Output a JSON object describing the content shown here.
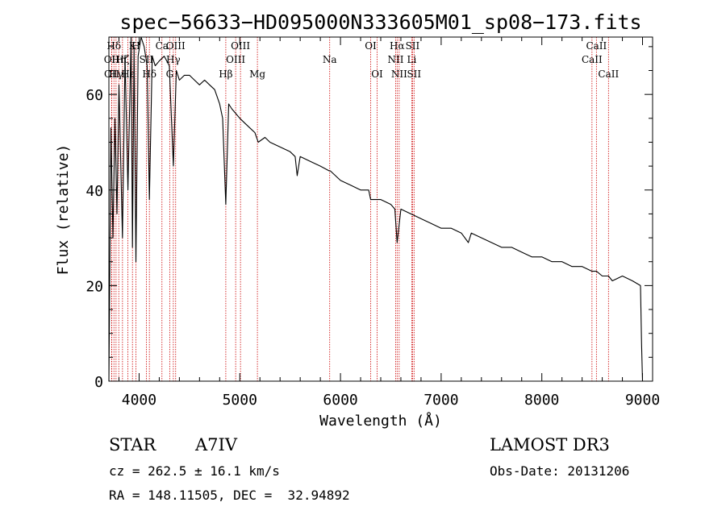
{
  "chart_data": {
    "type": "line",
    "title": "spec−56633−HD095000N333605M01_sp08−173.fits",
    "xlabel": "Wavelength (Å)",
    "ylabel": "Flux (relative)",
    "xlim": [
      3700,
      9100
    ],
    "ylim": [
      0,
      72
    ],
    "xticks": [
      4000,
      5000,
      6000,
      7000,
      8000,
      9000
    ],
    "yticks": [
      0,
      20,
      40,
      60
    ],
    "grid": false,
    "series": [
      {
        "name": "spectrum",
        "x": [
          3700,
          3720,
          3740,
          3760,
          3780,
          3800,
          3835,
          3860,
          3889,
          3920,
          3934,
          3950,
          3968,
          3990,
          4020,
          4050,
          4080,
          4102,
          4130,
          4160,
          4200,
          4250,
          4300,
          4340,
          4370,
          4400,
          4450,
          4500,
          4550,
          4600,
          4650,
          4700,
          4750,
          4800,
          4830,
          4861,
          4890,
          4920,
          4960,
          5000,
          5050,
          5100,
          5150,
          5183,
          5250,
          5300,
          5400,
          5500,
          5550,
          5570,
          5600,
          5700,
          5800,
          5890,
          5900,
          6000,
          6100,
          6200,
          6280,
          6300,
          6400,
          6500,
          6540,
          6563,
          6600,
          6700,
          6800,
          6900,
          7000,
          7100,
          7200,
          7270,
          7300,
          7400,
          7500,
          7600,
          7700,
          7800,
          7900,
          8000,
          8100,
          8200,
          8300,
          8400,
          8498,
          8542,
          8600,
          8662,
          8700,
          8800,
          8900,
          8980,
          8990,
          9000
        ],
        "y": [
          0,
          53,
          30,
          55,
          35,
          62,
          30,
          68,
          40,
          72,
          28,
          70,
          25,
          68,
          72,
          70,
          66,
          38,
          68,
          66,
          67,
          68,
          66,
          45,
          65,
          63,
          64,
          64,
          63,
          62,
          63,
          62,
          61,
          58,
          55,
          37,
          58,
          57,
          56,
          55,
          54,
          53,
          52,
          50,
          51,
          50,
          49,
          48,
          47,
          43,
          47,
          46,
          45,
          44,
          44,
          42,
          41,
          40,
          40,
          38,
          38,
          37,
          36,
          29,
          36,
          35,
          34,
          33,
          32,
          32,
          31,
          29,
          31,
          30,
          29,
          28,
          28,
          27,
          26,
          26,
          25,
          25,
          24,
          24,
          23,
          23,
          22,
          22,
          21,
          22,
          21,
          20,
          8,
          0
        ]
      }
    ],
    "lines": [
      {
        "label": "OII",
        "x": 3727,
        "row": 2
      },
      {
        "label": "OII",
        "x": 3729,
        "row": 3
      },
      {
        "label": "Hδ",
        "x": 3750,
        "row": 1
      },
      {
        "label": "Hγ",
        "x": 3771,
        "row": 3
      },
      {
        "label": "Hη",
        "x": 3798,
        "row": 2
      },
      {
        "label": "Hζ",
        "x": 3835,
        "row": 2
      },
      {
        "label": "Hε",
        "x": 3889,
        "row": 3
      },
      {
        "label": "K",
        "x": 3934,
        "row": 1
      },
      {
        "label": "H",
        "x": 3968,
        "row": 1
      },
      {
        "label": "SII",
        "x": 4072,
        "row": 2
      },
      {
        "label": "Hδ",
        "x": 4102,
        "row": 3
      },
      {
        "label": "Ca",
        "x": 4227,
        "row": 1
      },
      {
        "label": "G",
        "x": 4304,
        "row": 3
      },
      {
        "label": "OIII",
        "x": 4363,
        "row": 1
      },
      {
        "label": "Hγ",
        "x": 4340,
        "row": 2
      },
      {
        "label": "Hβ",
        "x": 4861,
        "row": 3
      },
      {
        "label": "OIII",
        "x": 4959,
        "row": 2
      },
      {
        "label": "OIII",
        "x": 5007,
        "row": 1
      },
      {
        "label": "Mg",
        "x": 5175,
        "row": 3
      },
      {
        "label": "Na",
        "x": 5893,
        "row": 2
      },
      {
        "label": "OI",
        "x": 6300,
        "row": 1
      },
      {
        "label": "OI",
        "x": 6364,
        "row": 3
      },
      {
        "label": "NII",
        "x": 6548,
        "row": 2
      },
      {
        "label": "Hα",
        "x": 6563,
        "row": 1
      },
      {
        "label": "NII",
        "x": 6583,
        "row": 3
      },
      {
        "label": "Li",
        "x": 6708,
        "row": 2
      },
      {
        "label": "SII",
        "x": 6716,
        "row": 1
      },
      {
        "label": "SII",
        "x": 6731,
        "row": 3
      },
      {
        "label": "CaII",
        "x": 8498,
        "row": 2
      },
      {
        "label": "CaII",
        "x": 8542,
        "row": 1
      },
      {
        "label": "CaII",
        "x": 8662,
        "row": 3
      }
    ]
  },
  "info": {
    "object_class": "STAR",
    "subclass": "A7IV",
    "survey": "LAMOST DR3",
    "redshift": "cz = 262.5 ± 16.1 km/s",
    "obs_date": "Obs-Date: 20131206",
    "coords": "RA = 148.11505, DEC =  32.94892"
  },
  "colors": {
    "spectrum": "#000000",
    "line_markers": "#cc0000",
    "frame": "#000000"
  }
}
